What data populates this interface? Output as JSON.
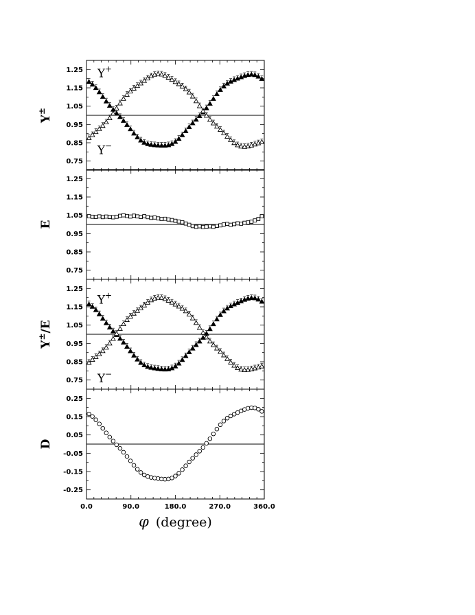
{
  "chart_data": {
    "type": "scatter",
    "x_axis": {
      "label_symbol": "φ",
      "label_text": "(degree)",
      "range": [
        0,
        360
      ],
      "ticks": [
        0,
        90,
        180,
        270,
        360
      ],
      "tick_labels": [
        "0.0",
        "90.0",
        "180.0",
        "270.0",
        "360.0"
      ]
    },
    "panels": [
      {
        "id": "Y-pm",
        "ylabel": "Y",
        "ylabel_sup": "±",
        "ylabel_suffix": "",
        "ylim": [
          0.7,
          1.3
        ],
        "yticks": [
          0.75,
          0.85,
          0.95,
          1.05,
          1.15,
          1.25
        ],
        "ytick_labels": [
          "0.75",
          "0.85",
          "0.95",
          "1.05",
          "1.15",
          "1.25"
        ],
        "reference_line": 1.0,
        "annotations": [
          {
            "text": "Y",
            "sup": "+",
            "x": 22,
            "y": 1.23
          },
          {
            "text": "Y",
            "sup": "−",
            "x": 22,
            "y": 0.81
          }
        ],
        "series": [
          {
            "marker": "filled-triangle",
            "mean": 1.025,
            "amp": 0.195,
            "peak_deg": 327
          },
          {
            "marker": "open-triangle",
            "mean": 1.025,
            "amp": 0.195,
            "peak_deg": 147
          }
        ]
      },
      {
        "id": "E",
        "ylabel": "E",
        "ylabel_sup": "",
        "ylabel_suffix": "",
        "ylim": [
          0.7,
          1.3
        ],
        "yticks": [
          0.75,
          0.85,
          0.95,
          1.05,
          1.15,
          1.25
        ],
        "ytick_labels": [
          "0.75",
          "0.85",
          "0.95",
          "1.05",
          "1.15",
          "1.25"
        ],
        "reference_line": 1.0,
        "annotations": [],
        "series": [
          {
            "marker": "open-square",
            "x": [
              5,
              12,
              19,
              26,
              33,
              40,
              47,
              54,
              61,
              68,
              75,
              82,
              89,
              96,
              103,
              110,
              117,
              124,
              131,
              138,
              145,
              152,
              159,
              166,
              173,
              180,
              187,
              194,
              201,
              208,
              215,
              222,
              229,
              236,
              243,
              250,
              257,
              264,
              271,
              278,
              285,
              292,
              299,
              306,
              313,
              320,
              327,
              334,
              341,
              348,
              355
            ],
            "y": [
              1.045,
              1.042,
              1.041,
              1.044,
              1.04,
              1.043,
              1.041,
              1.039,
              1.042,
              1.047,
              1.05,
              1.046,
              1.043,
              1.048,
              1.044,
              1.041,
              1.045,
              1.04,
              1.036,
              1.038,
              1.033,
              1.03,
              1.031,
              1.027,
              1.024,
              1.02,
              1.016,
              1.012,
              1.005,
              0.998,
              0.991,
              0.987,
              0.99,
              0.986,
              0.988,
              0.99,
              0.987,
              0.992,
              0.995,
              1.0,
              1.003,
              0.998,
              1.002,
              1.006,
              1.004,
              1.009,
              1.011,
              1.015,
              1.022,
              1.03,
              1.045
            ]
          }
        ]
      },
      {
        "id": "Y-over-E",
        "ylabel": "Y",
        "ylabel_sup": "±",
        "ylabel_suffix": "/E",
        "ylim": [
          0.7,
          1.3
        ],
        "yticks": [
          0.75,
          0.85,
          0.95,
          1.05,
          1.15,
          1.25
        ],
        "ytick_labels": [
          "0.75",
          "0.85",
          "0.95",
          "1.05",
          "1.15",
          "1.25"
        ],
        "reference_line": 1.0,
        "annotations": [
          {
            "text": "Y",
            "sup": "+",
            "x": 22,
            "y": 1.19
          },
          {
            "text": "Y",
            "sup": "−",
            "x": 22,
            "y": 0.76
          }
        ],
        "series": [
          {
            "marker": "filled-triangle",
            "mean": 1.0,
            "amp": 0.195,
            "peak_deg": 330
          },
          {
            "marker": "open-triangle",
            "mean": 1.0,
            "amp": 0.195,
            "peak_deg": 150
          }
        ]
      },
      {
        "id": "D",
        "ylabel": "D",
        "ylabel_sup": "",
        "ylabel_suffix": "",
        "ylim": [
          -0.3,
          0.3
        ],
        "yticks": [
          -0.25,
          -0.15,
          -0.05,
          0.05,
          0.15,
          0.25
        ],
        "ytick_labels": [
          "-0.25",
          "-0.15",
          "-0.05",
          "0.05",
          "0.15",
          "0.25"
        ],
        "reference_line": 0.0,
        "annotations": [],
        "series": [
          {
            "marker": "open-circle",
            "mean": 0.0,
            "amp": 0.195,
            "peak_deg": 330
          }
        ]
      }
    ]
  }
}
